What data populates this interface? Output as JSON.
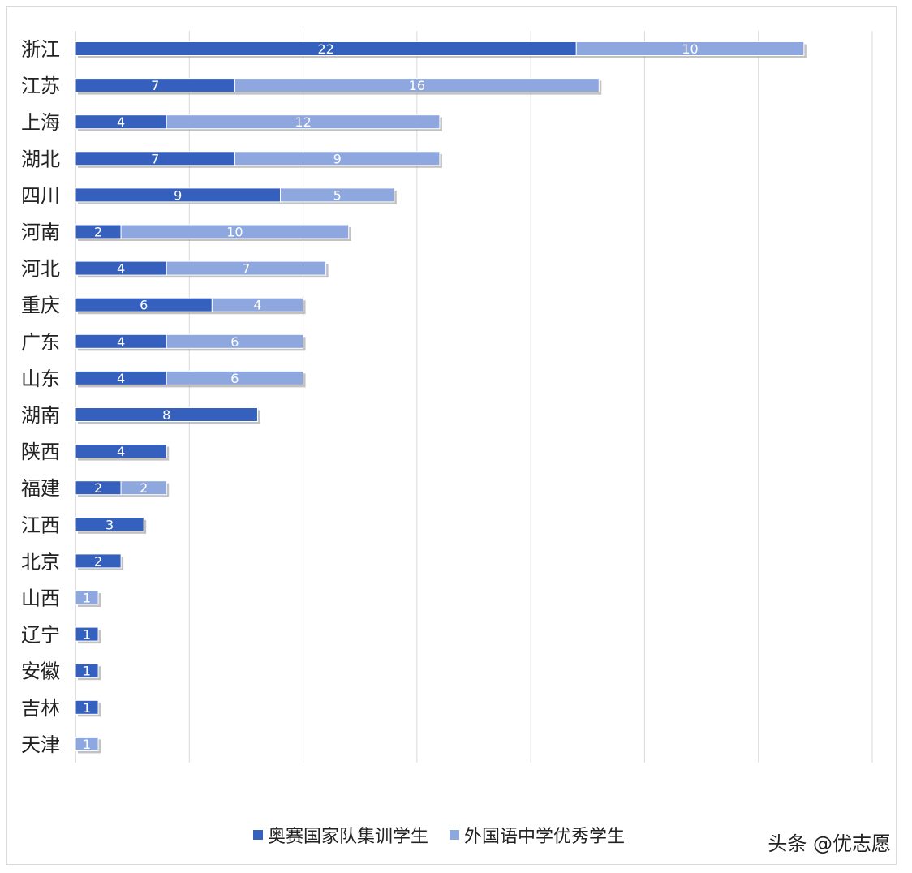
{
  "chart_data": {
    "type": "bar",
    "orientation": "horizontal",
    "stacked": true,
    "categories": [
      "浙江",
      "江苏",
      "上海",
      "湖北",
      "四川",
      "河南",
      "河北",
      "重庆",
      "广东",
      "山东",
      "湖南",
      "陕西",
      "福建",
      "江西",
      "北京",
      "山西",
      "辽宁",
      "安徽",
      "吉林",
      "天津"
    ],
    "series": [
      {
        "name": "奥赛国家队集训学生",
        "color": "#3560bd",
        "values": [
          22,
          7,
          4,
          7,
          9,
          2,
          4,
          6,
          4,
          4,
          8,
          4,
          2,
          3,
          2,
          0,
          1,
          1,
          1,
          0
        ]
      },
      {
        "name": "外国语中学优秀学生",
        "color": "#8ea7de",
        "values": [
          10,
          16,
          12,
          9,
          5,
          10,
          7,
          4,
          6,
          6,
          0,
          0,
          2,
          0,
          0,
          1,
          0,
          0,
          0,
          1
        ]
      }
    ],
    "xlim": [
      0,
      35
    ],
    "x_gridlines_every": 5,
    "x_tick_labels_shown": false,
    "grid": true,
    "data_labels": true,
    "legend": "bottom"
  },
  "credit": "头条 @优志愿"
}
